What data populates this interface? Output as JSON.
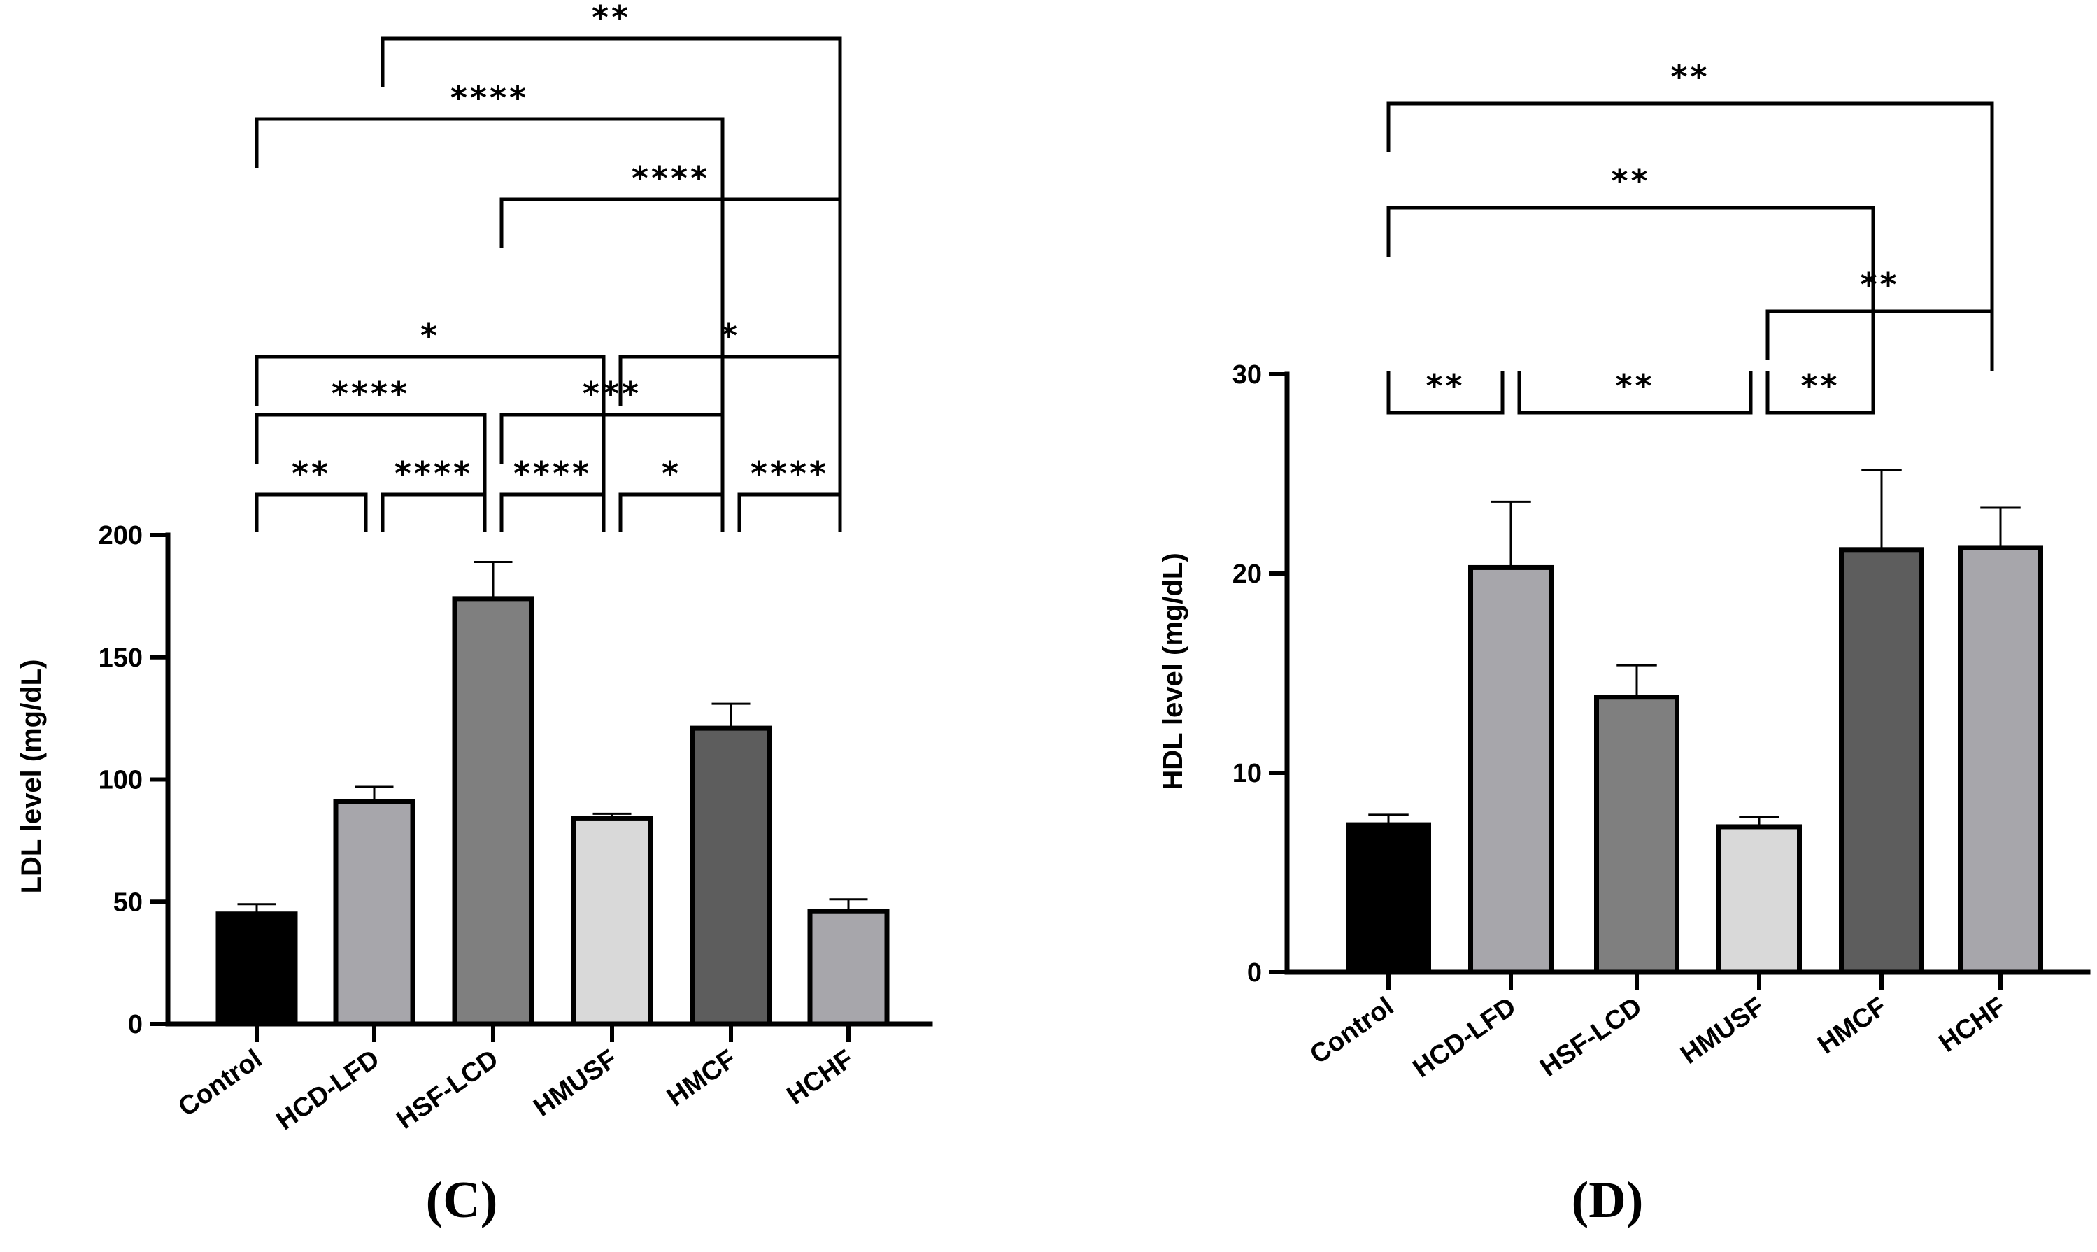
{
  "chart_data": [
    {
      "type": "bar",
      "panel_label": "(C)",
      "ylabel": "LDL level (mg/dL)",
      "xlabel": "",
      "ylim": [
        0,
        200
      ],
      "yticks": [
        0,
        50,
        100,
        150,
        200
      ],
      "categories": [
        "Control",
        "HCD-LFD",
        "HSF-LCD",
        "HMUSF",
        "HMCF",
        "HCHF"
      ],
      "values": [
        45,
        91,
        174,
        84,
        121,
        46
      ],
      "errors": [
        4,
        6,
        15,
        2,
        10,
        5
      ],
      "colors": [
        "#000000",
        "#a7a6ab",
        "#7f7f7f",
        "#d9d9d9",
        "#5d5d5d",
        "#a7a6ab"
      ],
      "comparisons": [
        {
          "a": 0,
          "b": 1,
          "label": "**"
        },
        {
          "a": 1,
          "b": 2,
          "label": "****"
        },
        {
          "a": 2,
          "b": 3,
          "label": "****"
        },
        {
          "a": 3,
          "b": 4,
          "label": "*"
        },
        {
          "a": 4,
          "b": 5,
          "label": "****"
        },
        {
          "a": 0,
          "b": 2,
          "label": "****"
        },
        {
          "a": 2,
          "b": 4,
          "label": "***"
        },
        {
          "a": 0,
          "b": 3,
          "label": "*"
        },
        {
          "a": 3,
          "b": 5,
          "label": "*"
        },
        {
          "a": 2,
          "b": 5,
          "label": "****"
        },
        {
          "a": 0,
          "b": 4,
          "label": "****"
        },
        {
          "a": 1,
          "b": 5,
          "label": "**"
        }
      ]
    },
    {
      "type": "bar",
      "panel_label": "(D)",
      "ylabel": "HDL level (mg/dL)",
      "xlabel": "",
      "ylim": [
        0,
        30
      ],
      "yticks": [
        0,
        10,
        20,
        30
      ],
      "categories": [
        "Control",
        "HCD-LFD",
        "HSF-LCD",
        "HMUSF",
        "HMCF",
        "HCHF"
      ],
      "values": [
        7.4,
        20.3,
        13.8,
        7.3,
        21.2,
        21.3
      ],
      "errors": [
        0.5,
        3.3,
        1.6,
        0.5,
        4.0,
        2.0
      ],
      "colors": [
        "#000000",
        "#a7a6ab",
        "#7f7f7f",
        "#d9d9d9",
        "#5d5d5d",
        "#a7a6ab"
      ],
      "comparisons": [
        {
          "a": 0,
          "b": 1,
          "label": "**"
        },
        {
          "a": 1,
          "b": 3,
          "label": "**"
        },
        {
          "a": 3,
          "b": 4,
          "label": "**"
        },
        {
          "a": 3,
          "b": 5,
          "label": "**"
        },
        {
          "a": 0,
          "b": 4,
          "label": "**"
        },
        {
          "a": 0,
          "b": 5,
          "label": "**"
        }
      ]
    }
  ]
}
